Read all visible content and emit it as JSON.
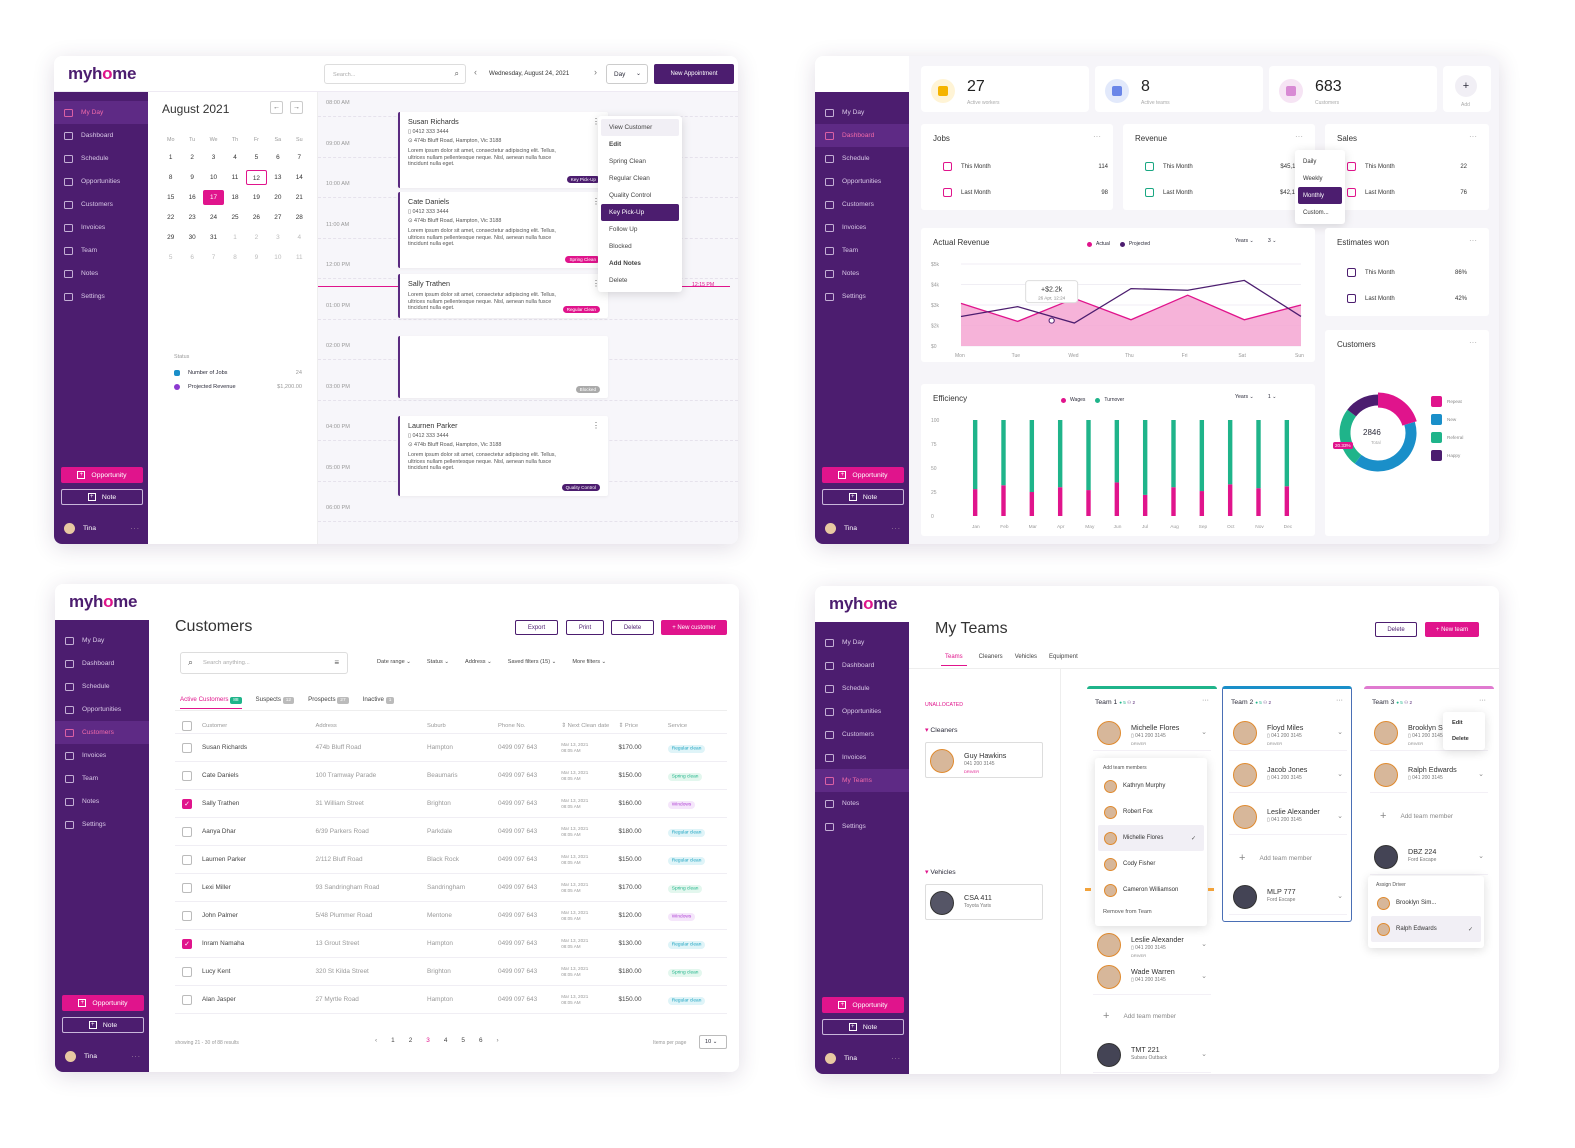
{
  "brand": {
    "logo_a": "myh",
    "logo_o": "o",
    "logo_b": "me"
  },
  "nav_s1": [
    "My Day",
    "Dashboard",
    "Schedule",
    "Opportunities",
    "Customers",
    "Invoices",
    "Team",
    "Notes",
    "Settings"
  ],
  "nav_s4": [
    "My Day",
    "Dashboard",
    "Schedule",
    "Opportunities",
    "Customers",
    "Invoices",
    "My Teams",
    "Notes",
    "Settings"
  ],
  "side_actions": {
    "opportunity": "Opportunity",
    "note": "Note",
    "user": "Tina",
    "more": "···"
  },
  "s1": {
    "search_placeholder": "Search...",
    "date": "Wednesday, August 24, 2021",
    "view": "Day",
    "new_appt": "New Appointment",
    "month": "August 2021",
    "weekdays": [
      "Mo",
      "Tu",
      "We",
      "Th",
      "Fr",
      "Sa",
      "Su"
    ],
    "days": [
      "1",
      "2",
      "3",
      "4",
      "5",
      "6",
      "7",
      "8",
      "9",
      "10",
      "11",
      "12",
      "13",
      "14",
      "15",
      "16",
      "17",
      "18",
      "19",
      "20",
      "21",
      "22",
      "23",
      "24",
      "25",
      "26",
      "27",
      "28",
      "29",
      "30",
      "31",
      "1",
      "2",
      "3",
      "4",
      "5",
      "6",
      "7",
      "8",
      "9",
      "10",
      "11"
    ],
    "status_label": "Status",
    "jobs_label": "Number of Jobs",
    "jobs_value": "24",
    "rev_label": "Projected Revenue",
    "rev_value": "$1,200.00",
    "times": [
      "08:00 AM",
      "09:00 AM",
      "10:00 AM",
      "11:00 AM",
      "12:00 PM",
      "01:00 PM",
      "02:00 PM",
      "03:00 PM",
      "04:00 PM",
      "05:00 PM",
      "06:00 PM"
    ],
    "now": "12:15 PM",
    "phone": "0412 333 3444",
    "address": "474b Bluff Road, Hampton, Vic 3188",
    "desc": "Lorem ipsum dolor sit amet, consectetur adipiscing elit. Tellus, ultrices nullam pellentesque neque. Nisl, aenean nulla fusce tincidunt nulla eget.",
    "cards": [
      {
        "name": "Susan Richards",
        "tag": "Key Pick-Up"
      },
      {
        "name": "Cate Daniels",
        "tag": "Spring Clean"
      },
      {
        "name": "Sally Trathen",
        "tag": "Regular Clean"
      },
      {
        "name": "",
        "tag": "Blocked"
      },
      {
        "name": "Laurnen Parker",
        "tag": "Quality Control"
      }
    ],
    "menu": [
      "View Customer",
      "Edit",
      "Spring Clean",
      "Regular Clean",
      "Quality Control",
      "Key Pick-Up",
      "Follow Up",
      "Blocked",
      "Add Notes",
      "Delete"
    ]
  },
  "s2": {
    "stats": [
      {
        "num": "27",
        "label": "Active workers"
      },
      {
        "num": "8",
        "label": "Active teams"
      },
      {
        "num": "683",
        "label": "Customers"
      }
    ],
    "add": "Add",
    "jobs": {
      "title": "Jobs",
      "rows": [
        {
          "l": "This Month",
          "v": "114"
        },
        {
          "l": "Last Month",
          "v": "98"
        }
      ]
    },
    "revenue": {
      "title": "Revenue",
      "rows": [
        {
          "l": "This Month",
          "v": "$45,114.00"
        },
        {
          "l": "Last Month",
          "v": "$42,136.00"
        }
      ]
    },
    "sales": {
      "title": "Sales",
      "rows": [
        {
          "l": "This Month",
          "v": "22"
        },
        {
          "l": "Last Month",
          "v": "76"
        }
      ]
    },
    "period_menu": [
      "Daily",
      "Weekly",
      "Monthly",
      "Custom..."
    ],
    "estimates": {
      "title": "Estimates won",
      "rows": [
        {
          "l": "This Month",
          "v": "86%"
        },
        {
          "l": "Last Month",
          "v": "42%"
        }
      ]
    },
    "customers_title": "Customers",
    "donut_total": "2846",
    "donut_total_label": "Total",
    "donut_pct": "20.33%",
    "donut_legend": [
      "Repeat",
      "New",
      "Referral",
      "Happy"
    ],
    "actual_title": "Actual Revenue",
    "filter_years": "Years",
    "filter_num": "3",
    "efficiency_title": "Efficiency",
    "filter_num2": "1",
    "tooltip_value": "+$2.2k",
    "tooltip_date": "26 Apr, 12:24"
  },
  "chart_data": [
    {
      "type": "area",
      "title": "Actual Revenue",
      "x": [
        "Mon",
        "Tue",
        "Wed",
        "Thu",
        "Fri",
        "Sat",
        "Sun"
      ],
      "yticks": [
        "$5k",
        "$4k",
        "$3k",
        "$2k",
        "$0"
      ],
      "ylim": [
        0,
        5
      ],
      "legend": "top-right",
      "series": [
        {
          "name": "Actual",
          "values": [
            2.6,
            1.5,
            2.9,
            1.6,
            3.1,
            1.6,
            2.5
          ]
        },
        {
          "name": "Projected",
          "values": [
            1.8,
            2.4,
            1.4,
            3.5,
            3.4,
            4.0,
            1.8
          ]
        }
      ]
    },
    {
      "type": "bar",
      "title": "Efficiency",
      "x": [
        "Jan",
        "Feb",
        "Mar",
        "Apr",
        "May",
        "Jun",
        "Jul",
        "Aug",
        "Sep",
        "Oct",
        "Nov",
        "Dec"
      ],
      "yticks": [
        "100",
        "75",
        "50",
        "25",
        "0"
      ],
      "ylim": [
        0,
        100
      ],
      "legend": "top-right",
      "series": [
        {
          "name": "Wages",
          "values": [
            28,
            32,
            25,
            30,
            27,
            35,
            22,
            30,
            26,
            33,
            29,
            31
          ]
        },
        {
          "name": "Turnover",
          "values": [
            72,
            68,
            75,
            70,
            73,
            65,
            78,
            70,
            74,
            67,
            71,
            69
          ]
        }
      ]
    },
    {
      "type": "pie",
      "title": "Customers",
      "categories": [
        "Repeat",
        "New",
        "Referral",
        "Happy"
      ],
      "values": [
        20.33,
        40,
        25,
        14.67
      ]
    }
  ],
  "s3": {
    "title": "Customers",
    "export": "Export",
    "print": "Print",
    "delete": "Delete",
    "new": "+ New customer",
    "search": "Search anything...",
    "filters": [
      "Date range",
      "Status",
      "Address",
      "Saved filters (15)",
      "More filters"
    ],
    "tabs": [
      {
        "l": "Active Customers",
        "c": "88"
      },
      {
        "l": "Suspects",
        "c": "12"
      },
      {
        "l": "Prospects",
        "c": "27"
      },
      {
        "l": "Inactive",
        "c": "1"
      }
    ],
    "cols": [
      "Customer",
      "Address",
      "Suburb",
      "Phone No.",
      "Next Clean date",
      "Price",
      "Service"
    ],
    "rows": [
      {
        "n": "Susan Richards",
        "a": "474b Bluff Road",
        "s": "Hampton",
        "p": "$170.00",
        "v": "Regular clean",
        "c": false
      },
      {
        "n": "Cate Daniels",
        "a": "100 Tramway Parade",
        "s": "Beaumaris",
        "p": "$150.00",
        "v": "Spring clean",
        "c": false
      },
      {
        "n": "Sally Trathen",
        "a": "31 William Street",
        "s": "Brighton",
        "p": "$160.00",
        "v": "Windows",
        "c": true
      },
      {
        "n": "Aanya Dhar",
        "a": "6/39 Parkers Road",
        "s": "Parkdale",
        "p": "$180.00",
        "v": "Regular clean",
        "c": false
      },
      {
        "n": "Laurnen Parker",
        "a": "2/112 Bluff Road",
        "s": "Black Rock",
        "p": "$150.00",
        "v": "Regular clean",
        "c": false
      },
      {
        "n": "Lexi Miller",
        "a": "93 Sandringham Road",
        "s": "Sandringham",
        "p": "$170.00",
        "v": "Spring clean",
        "c": false
      },
      {
        "n": "John Palmer",
        "a": "5/48 Plummer Road",
        "s": "Mentone",
        "p": "$120.00",
        "v": "Windows",
        "c": false
      },
      {
        "n": "Inram Namaha",
        "a": "13 Grout Street",
        "s": "Hampton",
        "p": "$130.00",
        "v": "Regular clean",
        "c": true
      },
      {
        "n": "Lucy Kent",
        "a": "320 St Kilda Street",
        "s": "Brighton",
        "p": "$180.00",
        "v": "Spring clean",
        "c": false
      },
      {
        "n": "Alan Jasper",
        "a": "27 Myrtle Road",
        "s": "Hampton",
        "p": "$150.00",
        "v": "Regular clean",
        "c": false
      }
    ],
    "phone": "0499 097 643",
    "date1": "Mar 13, 2021",
    "date2": "08:05 AM",
    "showing": "showing 21 - 30 of 88 results",
    "pages": [
      "1",
      "2",
      "3",
      "4",
      "5",
      "6"
    ],
    "per_page_label": "Items per page",
    "per_page": "10"
  },
  "s4": {
    "title": "My Teams",
    "delete": "Delete",
    "new": "+ New team",
    "tabs": [
      "Teams",
      "Cleaners",
      "Vehicles",
      "Equipment"
    ],
    "unallocated": "UNALLOCATED",
    "cleaners": "Cleaners",
    "vehicles": "Vehicles",
    "guy": {
      "n": "Guy Hawkins",
      "p": "041 200 3145",
      "r": "DRIVER"
    },
    "csa": {
      "n": "CSA 411",
      "s": "Toyota Yaris"
    },
    "phone": "041 200 3145",
    "role": "DRIVER",
    "team1": {
      "name": "Team 1",
      "c1": "5",
      "c2": "2",
      "m": [
        "Michelle Flores",
        "Leslie Alexander",
        "Wade Warren"
      ],
      "add": "Add team member",
      "car": "TMT 221",
      "car_s": "Subaru Outback"
    },
    "team2": {
      "name": "Team 2",
      "c1": "5",
      "c2": "2",
      "m": [
        "Floyd Miles",
        "Jacob Jones",
        "Leslie Alexander"
      ],
      "add": "Add team member",
      "car": "MLP 777",
      "car_s": "Ford Escape"
    },
    "team3": {
      "name": "Team 3",
      "c1": "5",
      "c2": "2",
      "m": [
        "Brooklyn Simmons",
        "Ralph Edwards"
      ],
      "add": "Add team member",
      "car": "DBZ 224",
      "car_s": "Ford Escape"
    },
    "add_members_label": "Add team members",
    "add_list": [
      "Kathryn Murphy",
      "Robert Fox",
      "Michelle Flores",
      "Cody Fisher",
      "Cameron Williamson"
    ],
    "remove": "Remove from Team",
    "team_menu": [
      "Edit",
      "Delete"
    ],
    "assign": "Assign Driver",
    "assign_list": [
      "Brooklyn Sim...",
      "Ralph Edwards"
    ]
  }
}
